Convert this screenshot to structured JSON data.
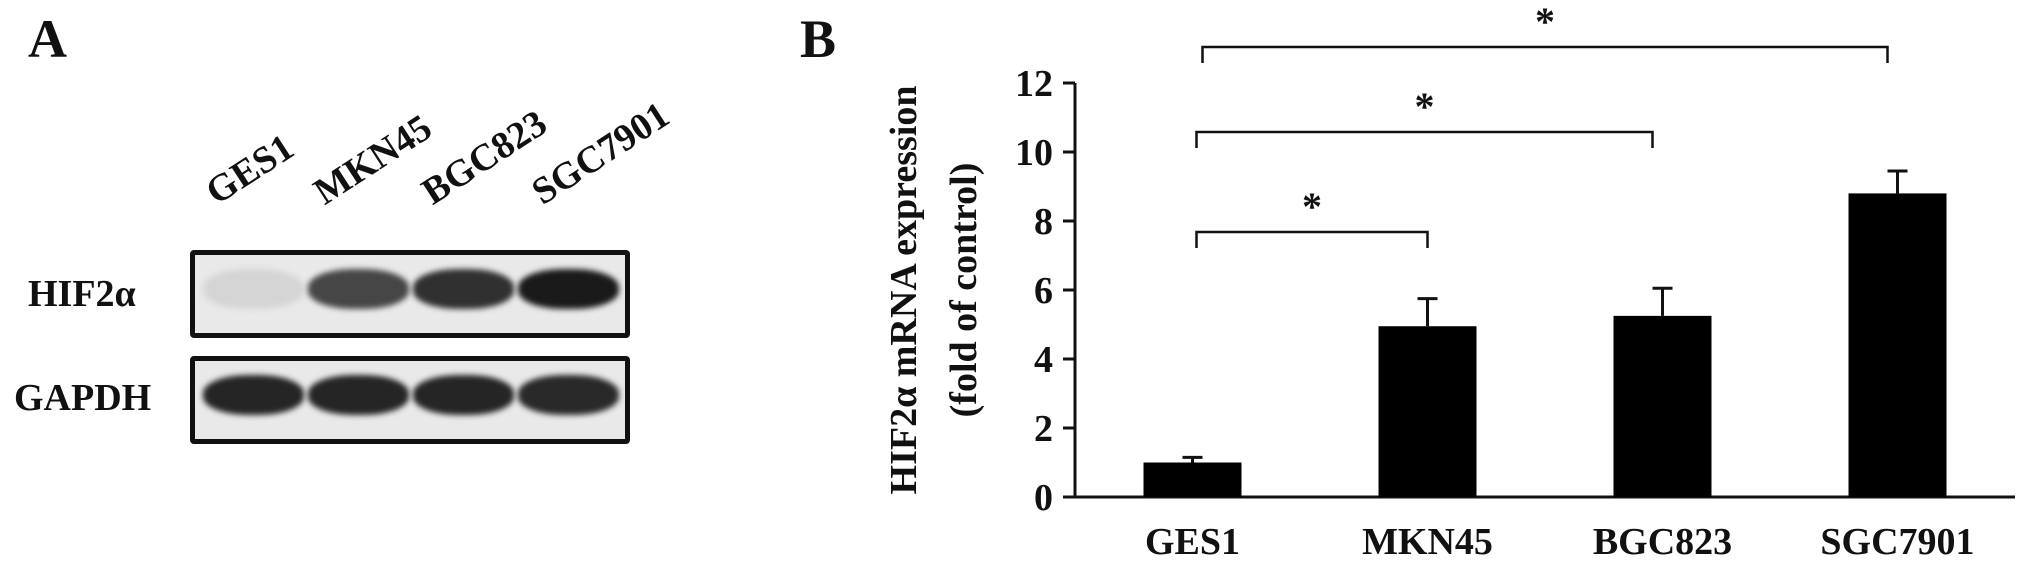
{
  "panel_a": {
    "letter": "A",
    "lanes": [
      "GES1",
      "MKN45",
      "BGC823",
      "SGC7901"
    ],
    "rows": [
      {
        "label": "HIF2α",
        "band_intensity": [
          0.1,
          0.75,
          0.85,
          0.95
        ]
      },
      {
        "label": "GAPDH",
        "band_intensity": [
          0.9,
          0.9,
          0.9,
          0.88
        ]
      }
    ]
  },
  "panel_b": {
    "letter": "B"
  },
  "chart_data": {
    "type": "bar",
    "categories": [
      "GES1",
      "MKN45",
      "BGC823",
      "SGC7901"
    ],
    "values": [
      1.0,
      4.95,
      5.25,
      8.8
    ],
    "errors": [
      0.15,
      0.8,
      0.8,
      0.65
    ],
    "ylabel_line1": "HIF2α mRNA expression",
    "ylabel_line2": "(fold of control)",
    "ylim": [
      0,
      12
    ],
    "yticks": [
      0,
      2,
      4,
      6,
      8,
      10,
      12
    ],
    "bar_color": "#000000",
    "significance": [
      {
        "from": "GES1",
        "to": "MKN45",
        "label": "*"
      },
      {
        "from": "GES1",
        "to": "BGC823",
        "label": "*"
      },
      {
        "from": "GES1",
        "to": "SGC7901",
        "label": "*"
      }
    ]
  }
}
